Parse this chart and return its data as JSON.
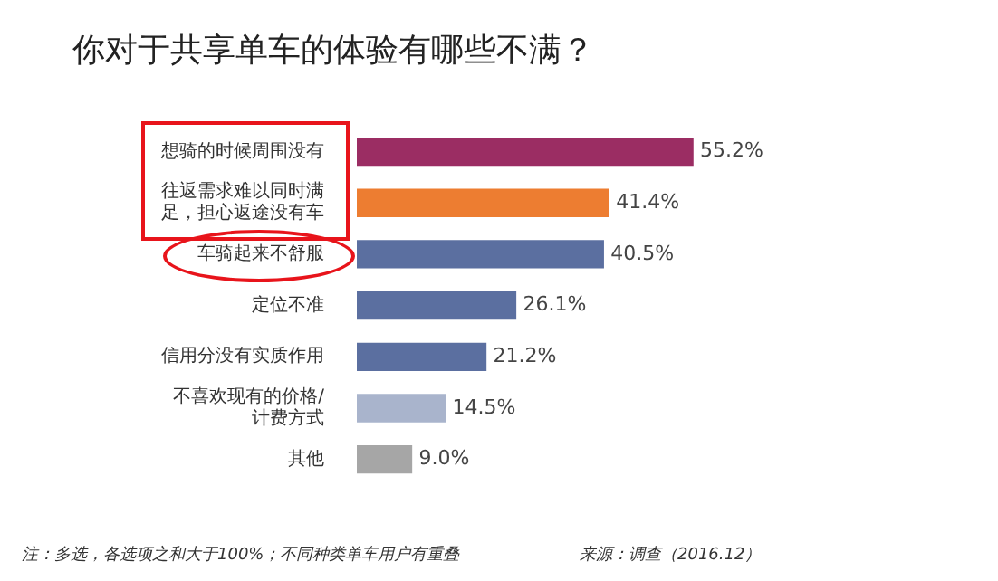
{
  "chart_data": {
    "type": "bar",
    "orientation": "horizontal",
    "title": "你对于共享单车的体验有哪些不满？",
    "categories": [
      "想骑的时候周围没有",
      "往返需求难以同时满足，担心返途没有车",
      "车骑起来不舒服",
      "定位不准",
      "信用分没有实质作用",
      "不喜欢现有的价格/计费方式",
      "其他"
    ],
    "values": [
      55.2,
      41.4,
      40.5,
      26.1,
      21.2,
      14.5,
      9.0
    ],
    "colors": [
      "#9b2d63",
      "#ed7d31",
      "#5b6fa0",
      "#5b6fa0",
      "#5b6fa0",
      "#a9b4cc",
      "#a6a6a6"
    ],
    "value_labels": [
      "55.2%",
      "41.4%",
      "40.5%",
      "26.1%",
      "21.2%",
      "14.5%",
      "9.0%"
    ],
    "grid": false,
    "legend": false,
    "annotations": [
      "注：多选，各选项之和大于100%；不同种类单车用户有重叠",
      "来源：调查（2016.12）"
    ]
  }
}
